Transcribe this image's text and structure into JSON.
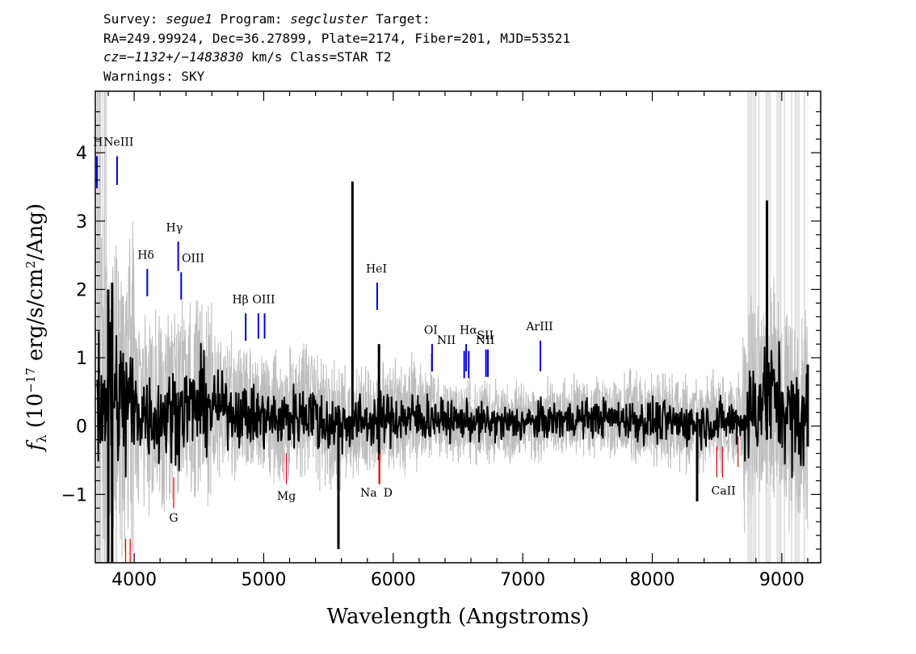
{
  "header": {
    "line1": {
      "p1": "Survey: ",
      "survey": "segue1",
      "p2": " Program: ",
      "program": "segcluster",
      "p3": " Target:"
    },
    "line2": "RA=249.99924, Dec=36.27899, Plate=2174, Fiber=201, MJD=53521",
    "line3": {
      "cz": "cz=−1132+/−1483830",
      "rest": " km/s Class=STAR T2"
    },
    "line4": "Warnings: SKY"
  },
  "chart_data": {
    "type": "line",
    "xlabel": "Wavelength (Angstroms)",
    "ylabel": "f_λ (10^-17 erg/s/cm^2/Ang)",
    "xlim": [
      3700,
      9300
    ],
    "ylim": [
      -2.0,
      4.9
    ],
    "xticks": [
      4000,
      5000,
      6000,
      7000,
      8000,
      9000
    ],
    "yticks": [
      -1,
      0,
      1,
      2,
      3,
      4
    ],
    "series": [
      {
        "role": "flux",
        "color": "#000000"
      },
      {
        "role": "error",
        "color": "#bdbdbd"
      }
    ],
    "spikes": [
      {
        "x": 3800,
        "lo": -2.0,
        "hi": 2.0
      },
      {
        "x": 3830,
        "lo": -2.0,
        "hi": 2.1
      },
      {
        "x": 5577,
        "lo": -1.8,
        "hi": 0.3
      },
      {
        "x": 5685,
        "lo": -0.2,
        "hi": 3.58
      },
      {
        "x": 5890,
        "lo": -0.5,
        "hi": 1.2
      },
      {
        "x": 8346,
        "lo": -1.1,
        "hi": 0.2
      },
      {
        "x": 8885,
        "lo": -0.2,
        "hi": 3.3
      },
      {
        "x": 9200,
        "lo": -0.3,
        "hi": 0.9
      }
    ],
    "emission_lines": [
      {
        "label": "H",
        "x": 3712,
        "y": 3.48,
        "top": 3.95,
        "lx": 3720,
        "ly": 4.1,
        "italic": false
      },
      {
        "label": "NeIII",
        "x": 3868,
        "y": 3.53,
        "top": 3.95,
        "lx": 3880,
        "ly": 4.1,
        "italic": false
      },
      {
        "label": "Hδ",
        "x": 4101,
        "y": 1.9,
        "top": 2.3,
        "lx": 4090,
        "ly": 2.45,
        "italic": true
      },
      {
        "label": "Hγ",
        "x": 4340,
        "y": 2.27,
        "top": 2.7,
        "lx": 4310,
        "ly": 2.85,
        "italic": true
      },
      {
        "label": "OIII",
        "x": 4363,
        "y": 1.85,
        "top": 2.25,
        "lx": 4455,
        "ly": 2.4,
        "italic": false
      },
      {
        "label": "Hβ",
        "x": 4861,
        "y": 1.25,
        "top": 1.65,
        "lx": 4820,
        "ly": 1.8,
        "italic": true
      },
      {
        "label": "OIII",
        "x": 4959,
        "y": 1.28,
        "top": 1.65,
        "lx": 5000,
        "ly": 1.8,
        "italic": false
      },
      {
        "label": "OIII",
        "x": 5007,
        "y": 1.28,
        "top": 1.65,
        "lx": 5000,
        "ly": 1.8,
        "italic": false
      },
      {
        "label": "HeI",
        "x": 5876,
        "y": 1.7,
        "top": 2.1,
        "lx": 5870,
        "ly": 2.25,
        "italic": false
      },
      {
        "label": "OI",
        "x": 6300,
        "y": 0.8,
        "top": 1.2,
        "lx": 6290,
        "ly": 1.35,
        "italic": false
      },
      {
        "label": "NII",
        "x": 6548,
        "y": 0.7,
        "top": 1.1,
        "lx": 6410,
        "ly": 1.2,
        "italic": false
      },
      {
        "label": "Hα",
        "x": 6563,
        "y": 0.8,
        "top": 1.2,
        "lx": 6580,
        "ly": 1.35,
        "italic": true
      },
      {
        "label": "NII",
        "x": 6583,
        "y": 0.7,
        "top": 1.1,
        "lx": 6710,
        "ly": 1.2,
        "italic": false
      },
      {
        "label": "SII",
        "x": 6716,
        "y": 0.72,
        "top": 1.12,
        "lx": 6710,
        "ly": 1.27,
        "italic": false
      },
      {
        "label": "SII",
        "x": 6731,
        "y": 0.72,
        "top": 1.12,
        "lx": 6710,
        "ly": 1.27,
        "italic": false
      },
      {
        "label": "ArIII",
        "x": 7136,
        "y": 0.8,
        "top": 1.25,
        "lx": 7130,
        "ly": 1.4,
        "italic": false
      }
    ],
    "absorption_lines": [
      {
        "label": "CaII",
        "x": 3934,
        "y": -2.0,
        "top": -1.65
      },
      {
        "label": "CaII",
        "x": 3969,
        "y": -2.0,
        "top": -1.65
      },
      {
        "label": "G",
        "x": 4305,
        "y": -1.2,
        "top": -0.75,
        "lx": 4305,
        "ly": -1.4
      },
      {
        "label": "Mg",
        "x": 5175,
        "y": -0.85,
        "top": -0.4,
        "lx": 5175,
        "ly": -1.08
      },
      {
        "label": "Na",
        "x": 5890,
        "y": -0.85,
        "top": -0.4,
        "lx": 5810,
        "ly": -1.03
      },
      {
        "label": "D",
        "x": 5896,
        "y": -0.85,
        "top": -0.4,
        "lx": 5960,
        "ly": -1.03
      },
      {
        "label": "CaII",
        "x": 8498,
        "y": -0.75,
        "top": -0.3,
        "lx": 8550,
        "ly": -1.0
      },
      {
        "label": "CaII",
        "x": 8542,
        "y": -0.75,
        "top": -0.3
      },
      {
        "label": "CaII",
        "x": 8662,
        "y": -0.6,
        "top": -0.15
      }
    ]
  }
}
